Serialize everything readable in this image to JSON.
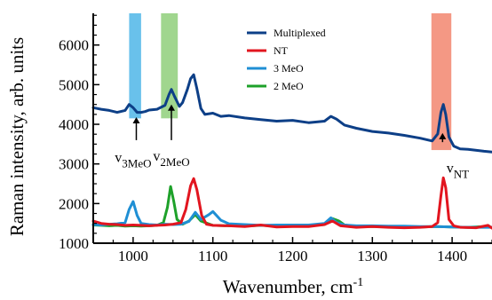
{
  "chart_data": {
    "type": "line",
    "title": "",
    "xlabel": "Wavenumber, cm",
    "xlabel_superscript": "-1",
    "ylabel": "Raman intensity, arb. units",
    "xlim": [
      950,
      1450
    ],
    "ylim": [
      1000,
      6800
    ],
    "x_ticks": [
      1000,
      1100,
      1200,
      1300,
      1400
    ],
    "y_ticks": [
      1000,
      2000,
      3000,
      4000,
      5000,
      6000
    ],
    "grid": false,
    "legend_position": "top-center",
    "series": [
      {
        "name": "Multiplexed",
        "color": "#0d3f87",
        "x": [
          950,
          960,
          970,
          980,
          990,
          995,
          1000,
          1005,
          1010,
          1015,
          1020,
          1030,
          1040,
          1045,
          1048,
          1052,
          1058,
          1062,
          1068,
          1072,
          1076,
          1080,
          1085,
          1090,
          1100,
          1110,
          1120,
          1140,
          1160,
          1180,
          1200,
          1220,
          1240,
          1248,
          1255,
          1265,
          1280,
          1300,
          1320,
          1340,
          1360,
          1375,
          1382,
          1386,
          1389,
          1392,
          1396,
          1402,
          1410,
          1420,
          1440,
          1450
        ],
        "y": [
          4420,
          4380,
          4350,
          4300,
          4350,
          4500,
          4420,
          4300,
          4300,
          4320,
          4360,
          4380,
          4480,
          4750,
          4880,
          4700,
          4450,
          4550,
          4880,
          5150,
          5250,
          4900,
          4400,
          4250,
          4280,
          4200,
          4220,
          4160,
          4120,
          4080,
          4100,
          4040,
          4080,
          4200,
          4130,
          3980,
          3900,
          3820,
          3780,
          3720,
          3650,
          3580,
          3760,
          4300,
          4500,
          4250,
          3680,
          3450,
          3380,
          3370,
          3320,
          3300
        ]
      },
      {
        "name": "NT",
        "color": "#e2151f",
        "x": [
          950,
          960,
          970,
          980,
          990,
          1000,
          1010,
          1020,
          1030,
          1040,
          1050,
          1060,
          1066,
          1072,
          1076,
          1080,
          1086,
          1092,
          1100,
          1120,
          1140,
          1160,
          1180,
          1200,
          1220,
          1240,
          1250,
          1260,
          1280,
          1300,
          1320,
          1340,
          1360,
          1375,
          1382,
          1386,
          1389,
          1392,
          1396,
          1402,
          1410,
          1430,
          1445,
          1450
        ],
        "y": [
          1560,
          1500,
          1480,
          1470,
          1450,
          1460,
          1450,
          1440,
          1450,
          1460,
          1480,
          1520,
          1850,
          2450,
          2630,
          2350,
          1700,
          1480,
          1450,
          1440,
          1420,
          1460,
          1410,
          1420,
          1420,
          1470,
          1560,
          1440,
          1400,
          1420,
          1400,
          1390,
          1400,
          1420,
          1520,
          2200,
          2650,
          2400,
          1600,
          1440,
          1400,
          1390,
          1450,
          1380
        ]
      },
      {
        "name": "3 MeO",
        "color": "#1f8fd4",
        "x": [
          950,
          960,
          970,
          980,
          990,
          995,
          1000,
          1005,
          1010,
          1020,
          1030,
          1040,
          1050,
          1060,
          1070,
          1078,
          1085,
          1095,
          1100,
          1110,
          1120,
          1140,
          1160,
          1180,
          1200,
          1220,
          1240,
          1248,
          1255,
          1265,
          1280,
          1300,
          1320,
          1340,
          1360,
          1380,
          1400,
          1420,
          1440,
          1450
        ],
        "y": [
          1470,
          1460,
          1480,
          1490,
          1520,
          1850,
          2050,
          1700,
          1500,
          1470,
          1460,
          1480,
          1470,
          1480,
          1550,
          1780,
          1600,
          1720,
          1800,
          1580,
          1490,
          1470,
          1450,
          1460,
          1460,
          1460,
          1500,
          1640,
          1520,
          1460,
          1440,
          1440,
          1430,
          1430,
          1420,
          1420,
          1410,
          1400,
          1400,
          1400
        ]
      },
      {
        "name": "2 MeO",
        "color": "#1ea12a",
        "x": [
          950,
          960,
          970,
          980,
          990,
          1000,
          1010,
          1020,
          1030,
          1038,
          1043,
          1047,
          1051,
          1055,
          1062,
          1070,
          1078,
          1085,
          1100,
          1120,
          1140,
          1160,
          1180,
          1200,
          1220,
          1240,
          1250,
          1258,
          1265,
          1280,
          1300,
          1320,
          1340,
          1360,
          1380,
          1400,
          1420,
          1440,
          1450
        ],
        "y": [
          1460,
          1450,
          1440,
          1450,
          1430,
          1440,
          1430,
          1440,
          1450,
          1520,
          1900,
          2430,
          2050,
          1600,
          1480,
          1560,
          1720,
          1560,
          1450,
          1440,
          1430,
          1450,
          1430,
          1460,
          1440,
          1470,
          1620,
          1560,
          1460,
          1420,
          1420,
          1420,
          1410,
          1410,
          1420,
          1410,
          1400,
          1420,
          1400
        ]
      }
    ],
    "highlight_bands": [
      {
        "x_range": [
          995,
          1010
        ],
        "y_range": [
          4150,
          6800
        ],
        "color": "#4fb6e8"
      },
      {
        "x_range": [
          1035,
          1056
        ],
        "y_range": [
          4150,
          6800
        ],
        "color": "#8fcf7a"
      },
      {
        "x_range": [
          1374,
          1399
        ],
        "y_range": [
          3350,
          6800
        ],
        "color": "#f2866e"
      }
    ],
    "annotations": [
      {
        "text": "v",
        "subscript": "3MeO",
        "arrow_x": 1004,
        "arrow_y_from": 3600,
        "arrow_y_to": 4180,
        "label_x": 1000,
        "label_y": 3050
      },
      {
        "text": "v",
        "subscript": "2MeO",
        "arrow_x": 1048,
        "arrow_y_from": 3600,
        "arrow_y_to": 4500,
        "label_x": 1048,
        "label_y": 3080
      },
      {
        "text": "v",
        "subscript": "NT",
        "arrow_x": 1388,
        "arrow_y_from": 3550,
        "arrow_y_to": 3780,
        "label_x": 1407,
        "label_y": 2780
      }
    ]
  }
}
